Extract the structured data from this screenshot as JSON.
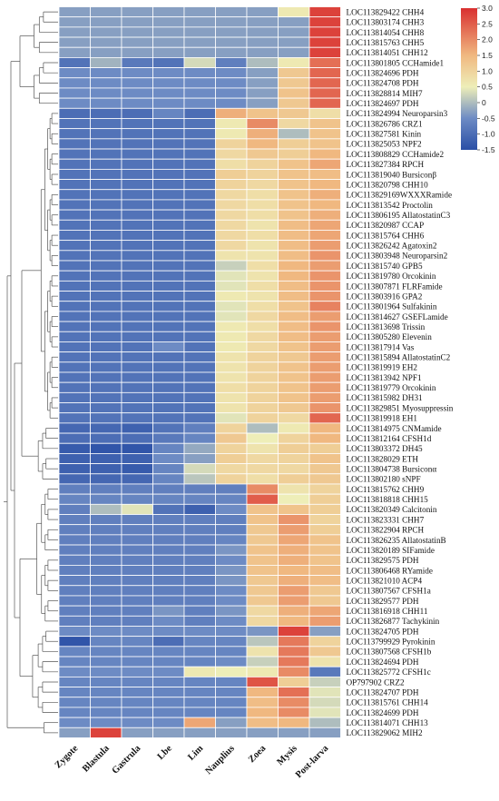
{
  "chart_data": {
    "type": "heatmap",
    "title": "",
    "xlabel": "",
    "ylabel": "",
    "columns": [
      "Zygote",
      "Blastula",
      "Gastrula",
      "Lbe",
      "Lim",
      "Nauplius",
      "Zoea",
      "Mysis",
      "Post-larva"
    ],
    "rows": [
      "LOC113829422 CHH4",
      "LOC113803174 CHH3",
      "LOC113814054 CHH8",
      "LOC113815763 CHH5",
      "LOC113814051 CHH12",
      "LOC113801805 CCHamide1",
      "LOC113824696 PDH",
      "LOC113824708 PDH",
      "LOC113828814 MIH7",
      "LOC113824697 PDH",
      "LOC113824994 Neuroparsin3",
      "LOC113826786 CRZ1",
      "LOC113827581 Kinin",
      "LOC113825053 NPF2",
      "LOC113808829 CCHamide2",
      "LOC113827384 RPCH",
      "LOC113819040 Bursiconβ",
      "LOC113820798 CHH10",
      "LOC113829169WXXXRamide",
      "LOC113813542 Proctolin",
      "LOC113806195 AllatostatinC3",
      "LOC113820987 CCAP",
      "LOC113815764 CHH6",
      "LOC113826242 Agatoxin2",
      "LOC113803948 Neuroparsin2",
      "LOC113815740 GPB5",
      "LOC113819780 Orcokinin",
      "LOC113807871 FLRFamide",
      "LOC113803916 GPA2",
      "LOC113801964 Sulfakinin",
      "LOC113814627 GSEFLamide",
      "LOC113813698 Trissin",
      "LOC113805280 Elevenin",
      "LOC113817914 Vas",
      "LOC113815894 AllatostatinC2",
      "LOC113819919 EH2",
      "LOC113813942 NPF1",
      "LOC113819779 Orcokinin",
      "LOC113815982 DH31",
      "LOC113829851 Myosuppressin",
      "LOC113819918 EH1",
      "LOC113814975 CNMamide",
      "LOC113812164 CFSH1d",
      "LOC113803372 DH45",
      "LOC113828029 ETH",
      "LOC113804738 Bursiconα",
      "LOC113802180 sNPF",
      "LOC113815762 CHH9",
      "LOC113818818 CHH15",
      "LOC113820349 Calcitonin",
      "LOC113823331 CHH7",
      "LOC113822904 RPCH",
      "LOC113826235 AllatostatinB",
      "LOC113820189 SIFamide",
      "LOC113829575 PDH",
      "LOC113806468 RYamide",
      "LOC113821010 ACP4",
      "LOC113807567 CFSH1a",
      "LOC113829577 PDH",
      "LOC113816918 CHH11",
      "LOC113826877 Tachykinin",
      "LOC113824705 PDH",
      "LOC113799929 Pyrokinin",
      "LOC113807568 CFSH1b",
      "LOC113824694 PDH",
      "LOC113825772 CFSH1c",
      "OP797902 CRZ2",
      "LOC113824707 PDH",
      "LOC113815761 CHH14",
      "LOC113824699 PDH",
      "LOC113814071 CHH13",
      "LOC113829062 MIH2"
    ],
    "values": [
      [
        -0.3,
        -0.3,
        -0.3,
        -0.3,
        -0.3,
        -0.3,
        -0.3,
        0.6,
        2.8
      ],
      [
        -0.3,
        -0.3,
        -0.3,
        -0.3,
        -0.3,
        -0.3,
        -0.3,
        -0.3,
        2.8
      ],
      [
        -0.3,
        -0.3,
        -0.3,
        -0.3,
        -0.3,
        -0.3,
        -0.3,
        -0.3,
        2.8
      ],
      [
        -0.3,
        -0.3,
        -0.3,
        -0.3,
        -0.3,
        -0.3,
        -0.3,
        -0.3,
        2.8
      ],
      [
        -0.3,
        -0.3,
        -0.3,
        -0.3,
        -0.3,
        -0.3,
        -0.3,
        -0.3,
        2.8
      ],
      [
        -0.9,
        -0.1,
        -0.8,
        -0.9,
        0.3,
        -0.7,
        0.0,
        0.6,
        2.3
      ],
      [
        -0.5,
        -0.5,
        -0.5,
        -0.5,
        -0.5,
        -0.5,
        -0.3,
        1.2,
        2.4
      ],
      [
        -0.5,
        -0.5,
        -0.5,
        -0.5,
        -0.5,
        -0.5,
        -0.3,
        1.2,
        2.4
      ],
      [
        -0.5,
        -0.5,
        -0.5,
        -0.5,
        -0.5,
        -0.5,
        -0.3,
        1.3,
        2.4
      ],
      [
        -0.5,
        -0.5,
        -0.5,
        -0.5,
        -0.5,
        -0.5,
        -0.3,
        1.2,
        2.4
      ],
      [
        -1.0,
        -1.0,
        -1.0,
        -0.6,
        -1.0,
        1.6,
        1.3,
        1.2,
        0.8
      ],
      [
        -0.9,
        -0.9,
        -0.9,
        -0.9,
        -0.9,
        0.6,
        2.0,
        0.9,
        1.3
      ],
      [
        -0.9,
        -0.9,
        -0.9,
        -0.9,
        -0.9,
        0.6,
        1.6,
        0.0,
        1.3
      ],
      [
        -0.9,
        -0.9,
        -0.9,
        -0.9,
        -0.9,
        1.0,
        1.5,
        1.1,
        1.3
      ],
      [
        -0.9,
        -0.9,
        -0.9,
        -0.9,
        -0.9,
        0.9,
        1.2,
        1.1,
        1.5
      ],
      [
        -0.9,
        -0.9,
        -0.9,
        -0.9,
        -0.9,
        0.8,
        1.0,
        1.3,
        1.7
      ],
      [
        -0.9,
        -0.9,
        -0.9,
        -0.9,
        -0.9,
        1.1,
        1.0,
        1.3,
        1.4
      ],
      [
        -0.9,
        -0.9,
        -0.9,
        -0.9,
        -0.9,
        1.0,
        0.9,
        1.3,
        1.5
      ],
      [
        -0.9,
        -0.9,
        -0.9,
        -0.9,
        -0.9,
        0.9,
        0.8,
        1.3,
        1.6
      ],
      [
        -0.9,
        -0.9,
        -0.9,
        -0.9,
        -0.9,
        0.9,
        0.8,
        1.3,
        1.5
      ],
      [
        -0.9,
        -0.9,
        -0.9,
        -0.9,
        -0.9,
        0.9,
        0.8,
        1.3,
        1.6
      ],
      [
        -0.9,
        -0.9,
        -0.9,
        -0.9,
        -0.9,
        0.9,
        0.7,
        1.4,
        1.7
      ],
      [
        -0.9,
        -0.9,
        -0.9,
        -0.9,
        -0.9,
        0.9,
        0.8,
        1.4,
        1.7
      ],
      [
        -0.9,
        -0.9,
        -0.9,
        -0.9,
        -0.9,
        0.9,
        0.7,
        1.4,
        1.8
      ],
      [
        -0.9,
        -0.9,
        -0.9,
        -0.9,
        -0.9,
        0.7,
        0.7,
        1.4,
        1.9
      ],
      [
        -0.9,
        -0.9,
        -0.9,
        -0.9,
        -0.9,
        0.2,
        0.8,
        1.5,
        1.8
      ],
      [
        -0.9,
        -0.9,
        -0.9,
        -0.9,
        -0.9,
        0.4,
        0.7,
        1.5,
        1.9
      ],
      [
        -0.9,
        -0.9,
        -0.9,
        -0.9,
        -0.9,
        0.4,
        0.8,
        1.4,
        1.9
      ],
      [
        -0.9,
        -0.9,
        -0.9,
        -0.9,
        -0.9,
        0.6,
        0.7,
        1.4,
        1.9
      ],
      [
        -0.9,
        -0.9,
        -0.9,
        -0.9,
        -0.9,
        0.4,
        0.8,
        1.3,
        2.1
      ],
      [
        -0.9,
        -0.9,
        -0.9,
        -0.9,
        -0.9,
        0.4,
        0.9,
        1.4,
        1.8
      ],
      [
        -0.9,
        -0.9,
        -0.9,
        -0.9,
        -0.9,
        0.6,
        0.8,
        1.4,
        1.9
      ],
      [
        -0.9,
        -0.9,
        -0.9,
        -0.9,
        -0.9,
        0.6,
        0.9,
        1.4,
        1.8
      ],
      [
        -0.9,
        -0.9,
        -0.9,
        -0.5,
        -0.9,
        0.6,
        0.9,
        1.3,
        1.8
      ],
      [
        -0.9,
        -0.9,
        -0.9,
        -0.9,
        -0.9,
        0.7,
        1.0,
        1.2,
        1.8
      ],
      [
        -0.9,
        -0.9,
        -0.9,
        -0.9,
        -0.9,
        0.7,
        1.0,
        1.3,
        1.8
      ],
      [
        -0.9,
        -0.9,
        -0.9,
        -0.9,
        -0.9,
        0.7,
        1.0,
        1.3,
        1.8
      ],
      [
        -0.9,
        -0.9,
        -0.9,
        -0.9,
        -0.9,
        0.8,
        1.0,
        1.3,
        1.8
      ],
      [
        -0.9,
        -0.9,
        -0.9,
        -0.9,
        -0.9,
        0.7,
        1.0,
        1.3,
        1.8
      ],
      [
        -0.9,
        -0.9,
        -0.9,
        -0.9,
        -0.9,
        0.7,
        1.0,
        1.2,
        1.9
      ],
      [
        -0.9,
        -0.9,
        -0.9,
        -0.9,
        -0.9,
        0.4,
        1.0,
        0.9,
        2.4
      ],
      [
        -1.1,
        -1.1,
        -1.2,
        -0.9,
        -0.7,
        1.0,
        0.0,
        0.6,
        1.5
      ],
      [
        -1.0,
        -1.0,
        -1.0,
        -0.8,
        -0.6,
        1.2,
        0.5,
        1.0,
        1.5
      ],
      [
        -1.3,
        -1.4,
        -1.4,
        -0.6,
        -0.2,
        1.0,
        0.7,
        1.1,
        1.1
      ],
      [
        -1.2,
        -1.2,
        -1.2,
        -0.5,
        -0.3,
        1.1,
        0.9,
        1.0,
        1.3
      ],
      [
        -1.2,
        -1.2,
        -1.3,
        -0.6,
        0.3,
        0.9,
        0.9,
        0.9,
        1.2
      ],
      [
        -1.1,
        -1.1,
        -1.1,
        -0.6,
        0.1,
        1.0,
        0.8,
        1.1,
        1.2
      ],
      [
        -0.7,
        -0.7,
        -0.7,
        -0.7,
        -0.7,
        -0.7,
        2.0,
        0.7,
        1.0
      ],
      [
        -0.6,
        -0.6,
        -0.6,
        -0.6,
        -0.6,
        -0.6,
        2.5,
        0.5,
        1.1
      ],
      [
        -0.7,
        0.0,
        0.4,
        -0.9,
        -1.2,
        -0.5,
        1.3,
        1.3,
        1.1
      ],
      [
        -0.7,
        -0.7,
        -0.7,
        -0.7,
        -0.7,
        -0.7,
        1.3,
        1.9,
        1.0
      ],
      [
        -0.7,
        -0.7,
        -0.7,
        -0.7,
        -0.7,
        -0.7,
        1.2,
        1.8,
        1.1
      ],
      [
        -0.7,
        -0.7,
        -0.7,
        -0.7,
        -0.7,
        -0.6,
        1.2,
        1.7,
        1.3
      ],
      [
        -0.7,
        -0.7,
        -0.7,
        -0.7,
        -0.7,
        -0.4,
        1.3,
        1.6,
        1.3
      ],
      [
        -0.7,
        -0.7,
        -0.7,
        -0.7,
        -0.7,
        -0.5,
        1.3,
        1.6,
        1.3
      ],
      [
        -0.7,
        -0.7,
        -0.7,
        -0.7,
        -0.7,
        -0.4,
        1.3,
        1.5,
        1.4
      ],
      [
        -0.7,
        -0.7,
        -0.7,
        -0.7,
        -0.7,
        -0.4,
        1.2,
        1.6,
        1.4
      ],
      [
        -0.7,
        -0.7,
        -0.7,
        -0.7,
        -0.7,
        -0.5,
        1.2,
        1.8,
        1.2
      ],
      [
        -0.7,
        -0.7,
        -0.7,
        -0.7,
        -0.7,
        -0.5,
        1.2,
        1.8,
        1.2
      ],
      [
        -0.7,
        -0.7,
        -0.7,
        -0.4,
        -0.7,
        -0.4,
        0.9,
        1.6,
        1.7
      ],
      [
        -0.7,
        -0.7,
        -0.7,
        -0.5,
        -0.7,
        -0.5,
        0.9,
        1.5,
        1.8
      ],
      [
        -0.5,
        -0.5,
        -0.5,
        -0.5,
        -0.5,
        -0.5,
        -0.4,
        2.8,
        -0.3
      ],
      [
        -1.4,
        -0.6,
        -0.6,
        -1.0,
        -0.6,
        -0.6,
        0.1,
        2.2,
        1.0
      ],
      [
        -0.6,
        -0.6,
        -0.6,
        -0.6,
        -0.6,
        -0.6,
        0.7,
        2.2,
        1.2
      ],
      [
        -0.6,
        -0.6,
        -0.6,
        -0.6,
        -0.6,
        -0.5,
        0.2,
        2.2,
        0.7
      ],
      [
        -0.5,
        -0.5,
        -0.5,
        -0.5,
        0.6,
        0.5,
        0.6,
        2.0,
        -0.8
      ],
      [
        -0.6,
        -0.6,
        -0.6,
        -0.6,
        -0.6,
        -0.6,
        2.6,
        1.1,
        0.2
      ],
      [
        -0.6,
        -0.6,
        -0.6,
        -0.6,
        -0.6,
        -0.6,
        1.5,
        2.3,
        0.4
      ],
      [
        -0.6,
        -0.6,
        -0.6,
        -0.6,
        -0.6,
        -0.6,
        1.4,
        2.0,
        0.3
      ],
      [
        -0.6,
        -0.6,
        -0.6,
        -0.6,
        -0.6,
        -0.6,
        1.5,
        2.0,
        0.4
      ],
      [
        -0.5,
        -0.5,
        -0.5,
        -0.5,
        1.7,
        -0.3,
        1.4,
        1.5,
        0.0
      ],
      [
        -0.3,
        2.8,
        -0.3,
        -0.3,
        -0.3,
        -0.3,
        -0.3,
        -0.3,
        -0.3
      ]
    ],
    "colorbar": {
      "ticks": [
        3.0,
        2.5,
        2.0,
        1.5,
        1.0,
        0.5,
        0.0,
        -0.5,
        -1.0,
        -1.5
      ],
      "tick_labels": [
        "3.0",
        "2.5",
        "2.0",
        "1.5",
        "1.0",
        "0.5",
        "0",
        "-0.5",
        "-1.0",
        "-1.5"
      ],
      "range": [
        -1.5,
        3.0
      ],
      "colors": [
        "#2a4fa6",
        "#6d8bc4",
        "#eeeeb8",
        "#f0b880",
        "#d93030"
      ]
    },
    "legend_position": "top-right",
    "row_dendrogram": true
  }
}
